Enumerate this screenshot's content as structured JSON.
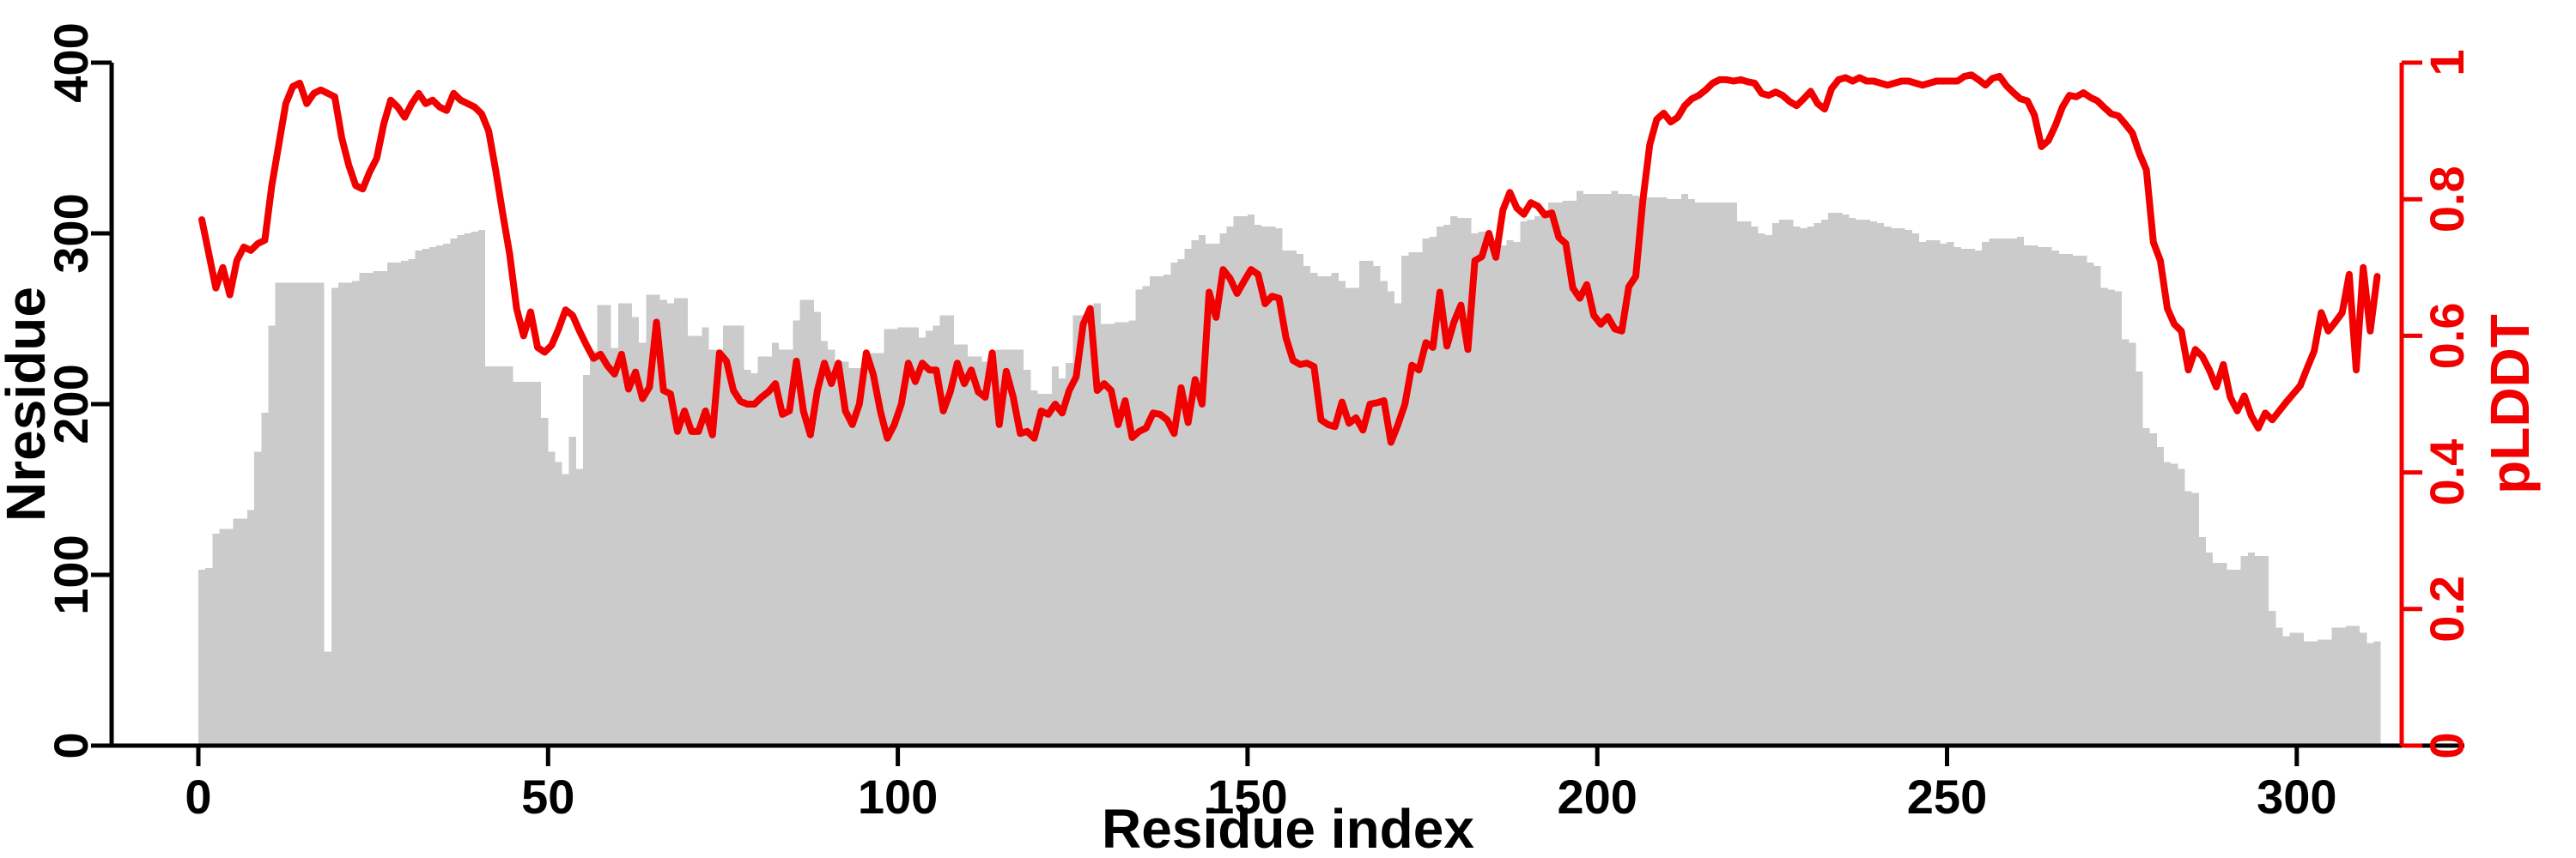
{
  "figure": {
    "background": "#ffffff"
  },
  "chart_data": {
    "type": "bar+line",
    "title": "",
    "xlabel": "Residue index",
    "ylabel_left": "Nresidue",
    "ylabel_right": "pLDDT",
    "x_ticks": [
      0,
      50,
      100,
      150,
      200,
      250,
      300
    ],
    "x_tick_labels": [
      "0",
      "50",
      "100",
      "150",
      "200",
      "250",
      "300"
    ],
    "xlim": [
      0,
      312
    ],
    "ylim_left": [
      0,
      400
    ],
    "y_ticks_left": [
      0,
      100,
      200,
      300,
      400
    ],
    "y_tick_labels_left": [
      "0",
      "100",
      "200",
      "300",
      "400"
    ],
    "ylim_right": [
      0,
      1
    ],
    "y_ticks_right": [
      0,
      0.2,
      0.4,
      0.6,
      0.8,
      1
    ],
    "y_tick_labels_right": [
      "0",
      "0.2",
      "0.4",
      "0.6",
      "0.8",
      "1"
    ],
    "n_residues": 312,
    "residue_index_start": 0,
    "grid": false,
    "legend": "none",
    "bar_color": "#cbcbcb",
    "line_color": "#f20000",
    "axis_color_left": "#000000",
    "axis_color_right": "#f20000",
    "series": [
      {
        "name": "Nresidue",
        "type": "bar",
        "axis": "left",
        "values": [
          103,
          104,
          124,
          127,
          127,
          133,
          133,
          138,
          172,
          195,
          246,
          271,
          271,
          271,
          271,
          271,
          271,
          271,
          55,
          268,
          271,
          271,
          272,
          277,
          277,
          278,
          278,
          283,
          283,
          284,
          285,
          290,
          291,
          292,
          293,
          294,
          297,
          299,
          300,
          301,
          302,
          222,
          222,
          222,
          222,
          213,
          213,
          213,
          213,
          192,
          172,
          166,
          159,
          181,
          162,
          217,
          231,
          258,
          258,
          233,
          259,
          259,
          251,
          236,
          264,
          264,
          261,
          259,
          262,
          262,
          240,
          240,
          245,
          232,
          232,
          246,
          246,
          246,
          220,
          218,
          228,
          228,
          236,
          232,
          232,
          249,
          261,
          261,
          254,
          237,
          232,
          225,
          225,
          221,
          221,
          221,
          230,
          230,
          244,
          244,
          245,
          245,
          245,
          239,
          243,
          246,
          252,
          252,
          235,
          235,
          228,
          228,
          225,
          225,
          232,
          232,
          232,
          232,
          220,
          208,
          206,
          206,
          222,
          215,
          224,
          252,
          252,
          248,
          259,
          247,
          247,
          248,
          248,
          249,
          267,
          269,
          275,
          275,
          276,
          283,
          285,
          291,
          296,
          299,
          294,
          294,
          300,
          304,
          310,
          310,
          311,
          305,
          304,
          304,
          303,
          290,
          290,
          288,
          281,
          277,
          275,
          275,
          277,
          272,
          268,
          268,
          284,
          284,
          281,
          272,
          266,
          259,
          287,
          289,
          289,
          297,
          298,
          304,
          305,
          310,
          309,
          309,
          300,
          301,
          292,
          292,
          293,
          296,
          295,
          307,
          308,
          310,
          312,
          318,
          318,
          319,
          319,
          325,
          323,
          323,
          323,
          323,
          325,
          323,
          323,
          322,
          321,
          321,
          321,
          321,
          320,
          320,
          323,
          320,
          318,
          318,
          318,
          318,
          318,
          318,
          307,
          307,
          304,
          300,
          299,
          306,
          308,
          308,
          304,
          303,
          304,
          306,
          308,
          312,
          312,
          311,
          309,
          308,
          308,
          307,
          306,
          304,
          303,
          303,
          302,
          300,
          295,
          296,
          296,
          294,
          295,
          292,
          291,
          291,
          290,
          295,
          297,
          297,
          297,
          297,
          298,
          293,
          293,
          292,
          292,
          290,
          288,
          288,
          287,
          287,
          283,
          281,
          268,
          267,
          266,
          238,
          236,
          219,
          186,
          183,
          175,
          166,
          165,
          162,
          149,
          148,
          122,
          113,
          107,
          107,
          103,
          103,
          111,
          113,
          111,
          111,
          79,
          69,
          64,
          66,
          66,
          61,
          61,
          62,
          62,
          69,
          69,
          70,
          70,
          66,
          60,
          61
        ]
      },
      {
        "name": "pLDDT",
        "type": "line",
        "axis": "right",
        "values": [
          0.77,
          0.72,
          0.67,
          0.7,
          0.66,
          0.71,
          0.73,
          0.725,
          0.735,
          0.74,
          0.82,
          0.88,
          0.94,
          0.965,
          0.97,
          0.94,
          0.955,
          0.96,
          0.955,
          0.95,
          0.89,
          0.85,
          0.82,
          0.815,
          0.84,
          0.86,
          0.91,
          0.945,
          0.935,
          0.92,
          0.94,
          0.955,
          0.94,
          0.945,
          0.935,
          0.93,
          0.955,
          0.945,
          0.94,
          0.935,
          0.925,
          0.9,
          0.843,
          0.78,
          0.72,
          0.64,
          0.6,
          0.635,
          0.583,
          0.576,
          0.586,
          0.61,
          0.638,
          0.63,
          0.607,
          0.586,
          0.567,
          0.573,
          0.556,
          0.544,
          0.573,
          0.522,
          0.547,
          0.508,
          0.525,
          0.62,
          0.52,
          0.515,
          0.46,
          0.49,
          0.46,
          0.46,
          0.49,
          0.455,
          0.575,
          0.563,
          0.52,
          0.504,
          0.5,
          0.5,
          0.51,
          0.518,
          0.53,
          0.485,
          0.49,
          0.563,
          0.49,
          0.455,
          0.52,
          0.56,
          0.53,
          0.56,
          0.49,
          0.47,
          0.5,
          0.575,
          0.543,
          0.49,
          0.45,
          0.47,
          0.5,
          0.56,
          0.533,
          0.56,
          0.55,
          0.55,
          0.49,
          0.518,
          0.56,
          0.53,
          0.55,
          0.518,
          0.51,
          0.575,
          0.47,
          0.548,
          0.51,
          0.457,
          0.46,
          0.45,
          0.49,
          0.485,
          0.5,
          0.487,
          0.52,
          0.54,
          0.617,
          0.64,
          0.52,
          0.53,
          0.52,
          0.47,
          0.505,
          0.451,
          0.46,
          0.465,
          0.487,
          0.485,
          0.477,
          0.457,
          0.524,
          0.473,
          0.536,
          0.5,
          0.664,
          0.627,
          0.697,
          0.684,
          0.662,
          0.68,
          0.697,
          0.69,
          0.647,
          0.658,
          0.655,
          0.597,
          0.564,
          0.558,
          0.56,
          0.555,
          0.477,
          0.47,
          0.467,
          0.503,
          0.472,
          0.48,
          0.462,
          0.5,
          0.502,
          0.505,
          0.444,
          0.47,
          0.5,
          0.557,
          0.55,
          0.59,
          0.583,
          0.664,
          0.585,
          0.62,
          0.645,
          0.58,
          0.71,
          0.716,
          0.75,
          0.715,
          0.784,
          0.81,
          0.787,
          0.778,
          0.795,
          0.79,
          0.777,
          0.78,
          0.744,
          0.735,
          0.67,
          0.655,
          0.675,
          0.63,
          0.617,
          0.628,
          0.61,
          0.607,
          0.672,
          0.687,
          0.797,
          0.88,
          0.917,
          0.926,
          0.913,
          0.92,
          0.937,
          0.947,
          0.952,
          0.96,
          0.97,
          0.975,
          0.975,
          0.973,
          0.975,
          0.972,
          0.97,
          0.955,
          0.952,
          0.957,
          0.952,
          0.943,
          0.937,
          0.947,
          0.958,
          0.94,
          0.932,
          0.962,
          0.975,
          0.978,
          0.973,
          0.978,
          0.973,
          0.973,
          0.97,
          0.967,
          0.97,
          0.973,
          0.973,
          0.97,
          0.967,
          0.97,
          0.973,
          0.973,
          0.973,
          0.973,
          0.98,
          0.982,
          0.975,
          0.967,
          0.977,
          0.98,
          0.966,
          0.956,
          0.947,
          0.944,
          0.923,
          0.877,
          0.886,
          0.908,
          0.935,
          0.952,
          0.95,
          0.956,
          0.949,
          0.944,
          0.934,
          0.925,
          0.922,
          0.91,
          0.897,
          0.867,
          0.843,
          0.737,
          0.71,
          0.64,
          0.617,
          0.607,
          0.55,
          0.58,
          0.57,
          0.55,
          0.525,
          0.558,
          0.51,
          0.49,
          0.512,
          0.483,
          0.465,
          0.487,
          0.477,
          0.49,
          0.503,
          0.515,
          0.527,
          0.553,
          0.578,
          0.634,
          0.607,
          0.62,
          0.634,
          0.69,
          0.55,
          0.7,
          0.607,
          0.687
        ]
      }
    ]
  }
}
